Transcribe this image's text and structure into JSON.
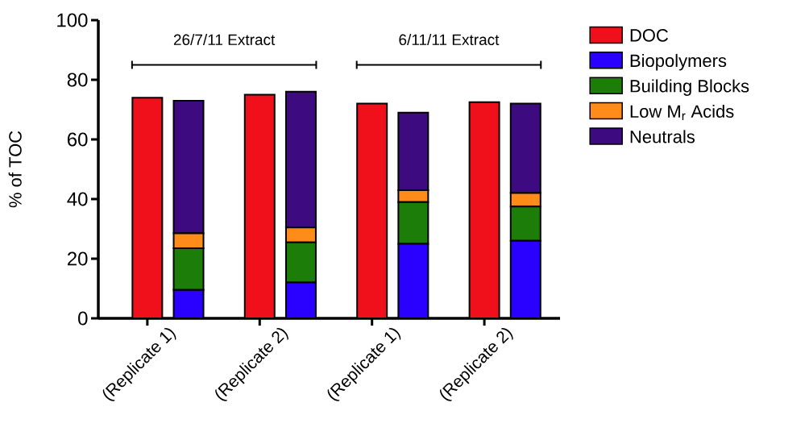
{
  "chart_data": {
    "type": "bar",
    "ylabel": "% of TOC",
    "categories": [
      "(Replicate 1)",
      null,
      "(Replicate 2)",
      null,
      "(Replicate 1)",
      null,
      "(Replicate 2)",
      null
    ],
    "ylim": [
      0,
      100
    ],
    "yticks": [
      0,
      20,
      40,
      60,
      80,
      100
    ],
    "stacked": true,
    "legend": "top right",
    "annotations": [
      "26/7/11 Extract",
      "6/11/11 Extract"
    ],
    "series": [
      {
        "name": "DOC",
        "color": "#f0101c",
        "values": [
          74,
          null,
          75,
          null,
          72,
          null,
          72.5,
          null
        ]
      },
      {
        "name": "Biopolymers",
        "color": "#2a00ff",
        "values": [
          null,
          9.5,
          null,
          12,
          null,
          25,
          null,
          26
        ]
      },
      {
        "name": "Building Blocks",
        "color": "#1c7d08",
        "values": [
          null,
          14,
          null,
          13.5,
          null,
          14,
          null,
          11.5
        ]
      },
      {
        "name": "Low M$_{r}$ Acids",
        "color": "#ff8c1a",
        "values": [
          null,
          5,
          null,
          5,
          null,
          4,
          null,
          4.5
        ]
      },
      {
        "name": "Neutrals",
        "color": "#3d0a80",
        "values": [
          null,
          44.5,
          null,
          45.5,
          null,
          26,
          null,
          30
        ]
      }
    ]
  }
}
